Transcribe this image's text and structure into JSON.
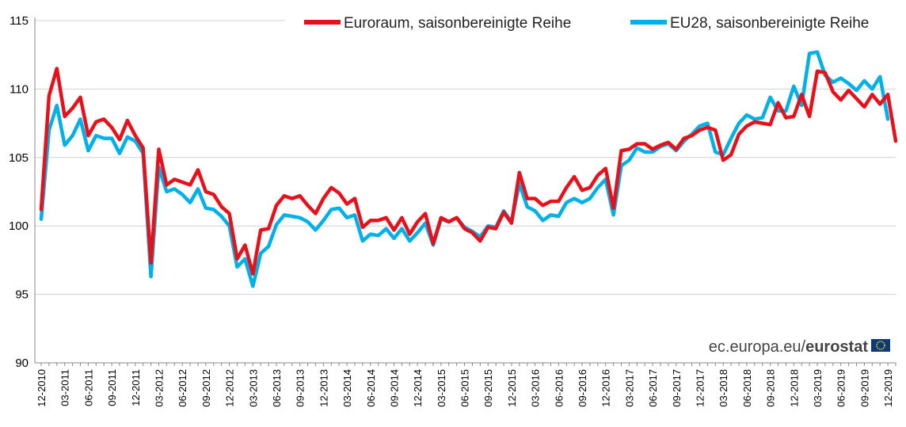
{
  "chart_data": {
    "type": "line",
    "title": "",
    "xlabel": "",
    "ylabel": "",
    "ylim": [
      90,
      115
    ],
    "yticks": [
      90,
      95,
      100,
      105,
      110,
      115
    ],
    "grid": "horizontal",
    "legend_position": "top-right",
    "start_month": "12-2010",
    "x_tick_labels": [
      "12-2010",
      "03-2011",
      "06-2011",
      "09-2011",
      "12-2011",
      "03-2012",
      "06-2012",
      "09-2012",
      "12-2012",
      "03-2013",
      "06-2013",
      "09-2013",
      "12-2013",
      "03-2014",
      "06-2014",
      "09-2014",
      "12-2014",
      "03-2015",
      "06-2015",
      "09-2015",
      "12-2015",
      "03-2016",
      "06-2016",
      "09-2016",
      "12-2016",
      "03-2017",
      "06-2017",
      "09-2017",
      "12-2017",
      "03-2018",
      "06-2018",
      "09-2018",
      "12-2018",
      "03-2019",
      "06-2019",
      "09-2019",
      "12-2019"
    ],
    "series": [
      {
        "name": "Euroraum, saisonbereinigte Reihe",
        "color": "#e8101a",
        "values": [
          101.2,
          109.5,
          111.5,
          108.0,
          108.6,
          109.4,
          106.6,
          107.6,
          107.8,
          107.2,
          106.3,
          107.7,
          106.6,
          105.7,
          97.3,
          105.6,
          103.0,
          103.4,
          103.2,
          103.0,
          104.1,
          102.5,
          102.3,
          101.4,
          100.9,
          97.6,
          98.6,
          96.5,
          99.7,
          99.8,
          101.5,
          102.2,
          102.0,
          102.2,
          101.5,
          100.9,
          102.0,
          102.8,
          102.4,
          101.6,
          102.0,
          99.9,
          100.4,
          100.4,
          100.6,
          99.7,
          100.6,
          99.4,
          100.3,
          100.9,
          98.7,
          100.6,
          100.3,
          100.6,
          99.8,
          99.5,
          98.9,
          99.9,
          99.8,
          101.0,
          100.2,
          103.9,
          102.0,
          102.0,
          101.5,
          101.8,
          101.8,
          102.8,
          103.6,
          102.6,
          102.8,
          103.7,
          104.2,
          101.3,
          105.5,
          105.6,
          106.0,
          106.0,
          105.6,
          105.9,
          106.1,
          105.6,
          106.4,
          106.6,
          107.0,
          107.2,
          107.0,
          104.8,
          105.2,
          106.7,
          107.3,
          107.6,
          107.5,
          107.4,
          109.0,
          107.9,
          108.0,
          109.6,
          108.0,
          111.3,
          111.2,
          109.8,
          109.2,
          109.9,
          109.3,
          108.7,
          109.6,
          108.9,
          109.6,
          106.2
        ]
      },
      {
        "name": "EU28, saisonbereinigte Reihe",
        "color": "#00b0e8",
        "values": [
          100.5,
          107.0,
          108.8,
          105.9,
          106.6,
          107.8,
          105.5,
          106.6,
          106.4,
          106.4,
          105.3,
          106.5,
          106.2,
          105.3,
          96.3,
          104.3,
          102.5,
          102.7,
          102.3,
          101.7,
          102.7,
          101.3,
          101.2,
          100.7,
          100.0,
          97.0,
          97.6,
          95.6,
          98.0,
          98.5,
          100.1,
          100.8,
          100.7,
          100.6,
          100.3,
          99.7,
          100.4,
          101.2,
          101.3,
          100.6,
          100.8,
          98.9,
          99.4,
          99.3,
          99.8,
          99.1,
          99.8,
          98.9,
          99.5,
          100.2,
          98.6,
          100.5,
          100.3,
          100.6,
          99.9,
          99.6,
          99.2,
          100.0,
          99.9,
          101.1,
          100.3,
          103.1,
          101.4,
          101.1,
          100.4,
          100.8,
          100.7,
          101.7,
          102.0,
          101.7,
          102.0,
          102.8,
          103.4,
          100.8,
          104.4,
          104.8,
          105.7,
          105.4,
          105.4,
          105.8,
          106.0,
          105.5,
          106.2,
          106.7,
          107.3,
          107.5,
          105.4,
          105.2,
          106.4,
          107.5,
          108.1,
          107.8,
          107.9,
          109.4,
          108.4,
          108.4,
          110.2,
          108.8,
          112.6,
          112.7,
          111.0,
          110.5,
          110.8,
          110.4,
          109.9,
          110.6,
          110.0,
          110.9,
          107.8
        ]
      }
    ]
  },
  "source": {
    "prefix": "ec.europa.eu/",
    "brand": "eurostat",
    "logo_icon": "eu-flag-icon"
  }
}
